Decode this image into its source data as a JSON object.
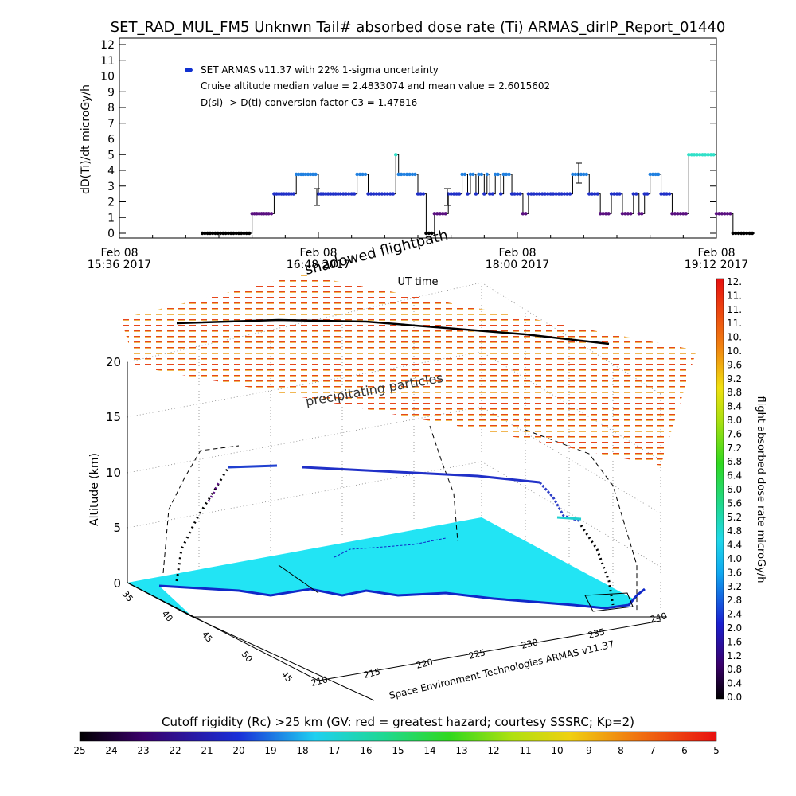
{
  "title": "SET_RAD_MUL_FM5 Unknwn Tail#  absorbed dose rate (Ti) ARMAS_dirIP_Report_01440",
  "chart_data": [
    {
      "type": "line",
      "ylabel": "dD(Ti)/dt microGy/h",
      "xlabel": "UT time",
      "ylim": [
        0,
        12
      ],
      "yticks": [
        "0",
        "1",
        "2",
        "3",
        "4",
        "5",
        "6",
        "7",
        "8",
        "9",
        "10",
        "11",
        "12"
      ],
      "xticks": [
        {
          "day": "Feb 08",
          "time": "15:36 2017"
        },
        {
          "day": "Feb 08",
          "time": "16:48 2017"
        },
        {
          "day": "Feb 08",
          "time": "18:00 2017"
        },
        {
          "day": "Feb 08",
          "time": "19:12 2017"
        }
      ],
      "legend": {
        "entry": "SET ARMAS v11.37 with 22% 1-sigma uncertainty",
        "line2": "Cruise altitude median value = 2.4833074 and mean value = 2.6015602",
        "line3": "D(si) -> D(ti) conversion factor C3 = 1.47816",
        "color": "#1030d0"
      },
      "x_minutes_from_1536": [
        30,
        46,
        48,
        54,
        56,
        63,
        64,
        70,
        72,
        80,
        82,
        86,
        88,
        90,
        94,
        96,
        98,
        100,
        101,
        104,
        108,
        110,
        111,
        113,
        114,
        118,
        119,
        122,
        124,
        126,
        127,
        129,
        130,
        132,
        133,
        134,
        136,
        138,
        139,
        142,
        143,
        146,
        148,
        150,
        152,
        154,
        158,
        160,
        162,
        164,
        166,
        170,
        172,
        174,
        176,
        178,
        180,
        182,
        186,
        188,
        190,
        192,
        194,
        196,
        198,
        200,
        204,
        206,
        210,
        214,
        216,
        218,
        222,
        226,
        230
      ],
      "values": [
        0,
        0,
        1.25,
        1.25,
        2.5,
        2.5,
        3.75,
        3.75,
        2.5,
        2.5,
        2.5,
        3.75,
        3.75,
        2.5,
        2.5,
        2.5,
        2.5,
        5,
        3.75,
        3.75,
        2.5,
        2.5,
        0,
        0,
        1.25,
        1.25,
        2.5,
        2.5,
        3.75,
        2.5,
        3.75,
        2.5,
        3.75,
        2.5,
        3.75,
        2.5,
        3.75,
        2.5,
        3.75,
        2.5,
        2.5,
        1.25,
        2.5,
        2.5,
        2.5,
        2.5,
        2.5,
        2.5,
        2.5,
        3.75,
        3.75,
        2.5,
        2.5,
        1.25,
        1.25,
        2.5,
        2.5,
        1.25,
        2.5,
        1.25,
        2.5,
        3.75,
        3.75,
        2.5,
        2.5,
        1.25,
        1.25,
        5,
        5,
        5,
        1.25,
        1.25,
        0,
        0,
        0
      ]
    },
    {
      "type": "scatter",
      "description_labels": {
        "shadowed": "shadowed flightpath",
        "precip": "precipitating particles"
      },
      "ylabel": "Altitude (km)",
      "zticks": [
        "0",
        "5",
        "10",
        "15",
        "20"
      ],
      "lat_ticks": [
        "35",
        "40",
        "45",
        "50",
        "45"
      ],
      "lon_ticks": [
        "210",
        "215",
        "220",
        "225",
        "230",
        "235",
        "240"
      ],
      "credit": "Space Environment Technologies ARMAS v11.37",
      "colorbar_right": {
        "label": "flight absorbed dose rate microGy/h",
        "ticks": [
          "0.0",
          "0.4",
          "0.8",
          "1.2",
          "1.6",
          "2.0",
          "2.4",
          "2.8",
          "3.2",
          "3.6",
          "4.0",
          "4.4",
          "4.8",
          "5.2",
          "5.6",
          "6.0",
          "6.4",
          "6.8",
          "7.2",
          "7.6",
          "8.0",
          "8.4",
          "8.8",
          "9.2",
          "9.6",
          "10.",
          "10.",
          "11.",
          "11.",
          "11.",
          "12."
        ]
      },
      "colorbar_bottom": {
        "label": "Cutoff rigidity (Rc) >25 km (GV: red = greatest hazard; courtesy SSSRC; Kp=2)",
        "ticks": [
          "25",
          "24",
          "23",
          "22",
          "21",
          "20",
          "19",
          "18",
          "17",
          "16",
          "15",
          "14",
          "13",
          "12",
          "11",
          "10",
          "9",
          "8",
          "7",
          "6",
          "5"
        ]
      },
      "colors": {
        "ocean": "#22e4f4",
        "coast": "#1028c8",
        "track_cruise": "#2030c8",
        "track_climb": "#000000"
      }
    }
  ]
}
